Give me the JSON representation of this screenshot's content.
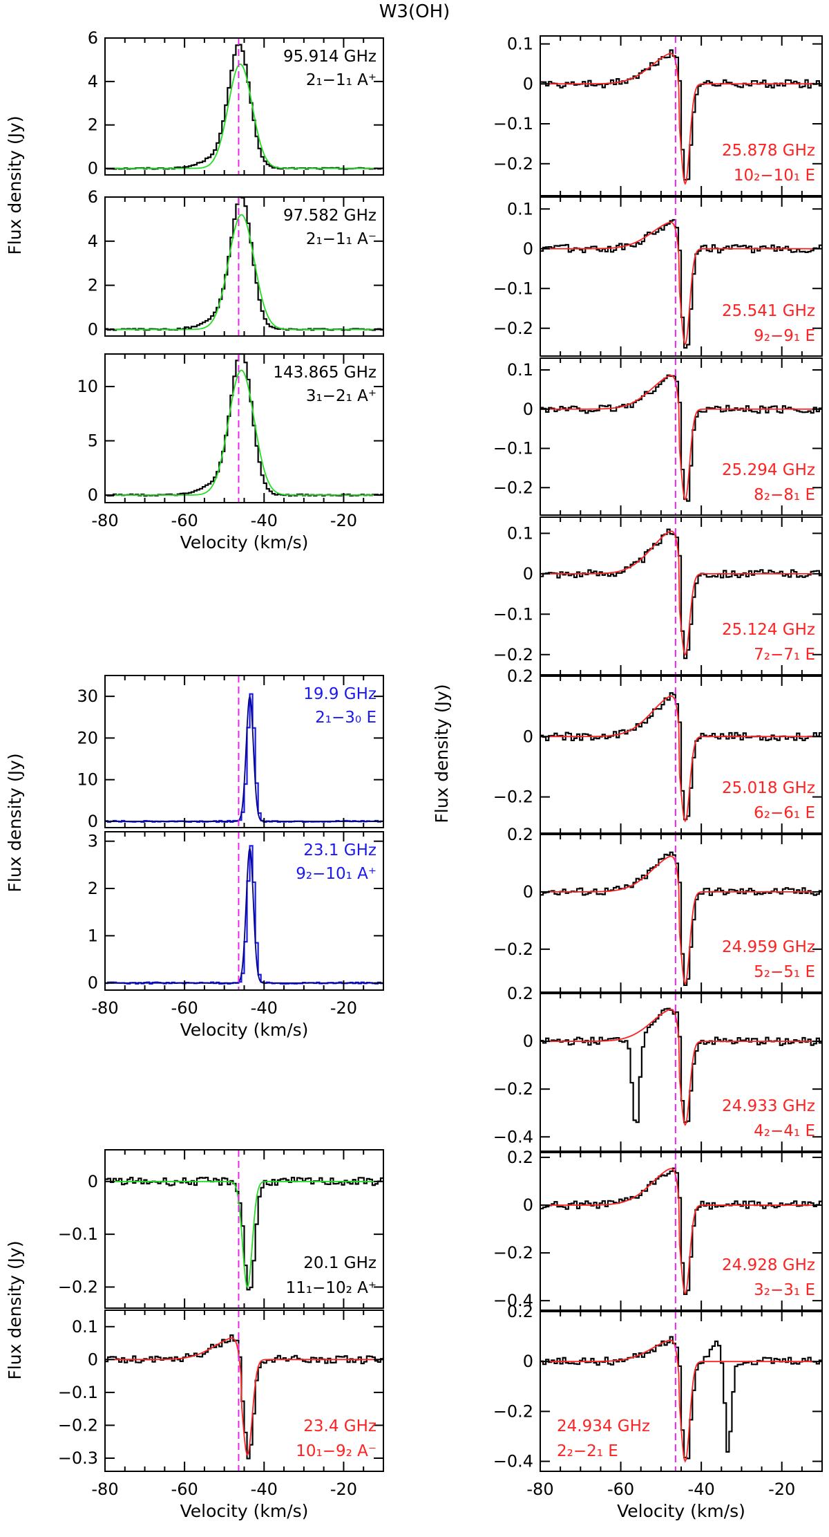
{
  "figure_title": "W3(OH)",
  "colors": {
    "observed": "#000000",
    "fit_green": "#22dd22",
    "fit_red": "#ff2222",
    "blue": "#1a1aee",
    "fit_blue_dark": "#000080",
    "vline": "#ee22ee"
  },
  "reference_velocity": -46.4,
  "chart_data": [
    {
      "id": "L1",
      "type": "line",
      "title": "",
      "xlim": [
        -80,
        -10
      ],
      "ylim": [
        -0.3,
        6
      ],
      "yticks": [
        0,
        2,
        4,
        6
      ],
      "ytick_labels": [
        "0",
        "2",
        "4",
        "6"
      ],
      "xticks": [
        -80,
        -60,
        -40,
        -20
      ],
      "xtick_labels": [
        "-80",
        "-60",
        "-40",
        "-20"
      ],
      "freq_label": "95.914 GHz",
      "trans_label": "2₁−1₁ A⁺",
      "label_color": "#000000",
      "label_pos": "top-right",
      "series": [
        {
          "role": "observed",
          "color": "#000000",
          "peak": 5.3,
          "center": -46.5,
          "wing": true
        },
        {
          "role": "fit",
          "color": "#22dd22",
          "peak": 4.8,
          "center": -46.0,
          "width": 3.0
        }
      ]
    },
    {
      "id": "L2",
      "type": "line",
      "title": "",
      "xlim": [
        -80,
        -10
      ],
      "ylim": [
        -0.3,
        6
      ],
      "yticks": [
        0,
        2,
        4,
        6
      ],
      "ytick_labels": [
        "0",
        "2",
        "4",
        "6"
      ],
      "xticks": [
        -80,
        -60,
        -40,
        -20
      ],
      "xtick_labels": [
        "-80",
        "-60",
        "-40",
        "-20"
      ],
      "freq_label": "97.582 GHz",
      "trans_label": "2₁−1₁ A⁻",
      "label_color": "#000000",
      "label_pos": "top-right",
      "series": [
        {
          "role": "observed",
          "color": "#000000",
          "peak": 5.6,
          "center": -46.0,
          "wing": true
        },
        {
          "role": "fit",
          "color": "#22dd22",
          "peak": 5.2,
          "center": -45.7,
          "width": 3.2
        }
      ]
    },
    {
      "id": "L3",
      "type": "line",
      "title": "",
      "xlim": [
        -80,
        -10
      ],
      "ylim": [
        -0.7,
        13
      ],
      "yticks": [
        0,
        5,
        10
      ],
      "ytick_labels": [
        "0",
        "5",
        "10"
      ],
      "xticks": [
        -80,
        -60,
        -40,
        -20
      ],
      "xtick_labels": [
        "-80",
        "-60",
        "-40",
        "-20"
      ],
      "freq_label": "143.865 GHz",
      "trans_label": "3₁−2₁ A⁺",
      "label_color": "#000000",
      "label_pos": "top-right",
      "xlabel": "Velocity (km/s)",
      "series": [
        {
          "role": "observed",
          "color": "#000000",
          "peak": 12.3,
          "center": -46.0,
          "wing": true
        },
        {
          "role": "fit",
          "color": "#22dd22",
          "peak": 11.5,
          "center": -45.7,
          "width": 3.2
        }
      ]
    },
    {
      "id": "L4",
      "type": "line",
      "title": "",
      "xlim": [
        -80,
        -10
      ],
      "ylim": [
        -1.5,
        35
      ],
      "yticks": [
        0,
        10,
        20,
        30
      ],
      "ytick_labels": [
        "0",
        "10",
        "20",
        "30"
      ],
      "xticks": [
        -80,
        -60,
        -40,
        -20
      ],
      "xtick_labels": [
        "-80",
        "-60",
        "-40",
        "-20"
      ],
      "freq_label": "19.9 GHz",
      "trans_label": "2₁−3₀ E",
      "label_color": "#1a1aee",
      "label_pos": "top-right",
      "series": [
        {
          "role": "observed",
          "color": "#1a1aee",
          "peak": 30.5,
          "center": -43.6,
          "width": 0.9
        },
        {
          "role": "fit",
          "color": "#000080",
          "peak": 30.0,
          "center": -43.6,
          "width": 0.9
        }
      ]
    },
    {
      "id": "L5",
      "type": "line",
      "title": "",
      "xlim": [
        -80,
        -10
      ],
      "ylim": [
        -0.15,
        3.2
      ],
      "yticks": [
        0,
        1,
        2,
        3
      ],
      "ytick_labels": [
        "0",
        "1",
        "2",
        "3"
      ],
      "xticks": [
        -80,
        -60,
        -40,
        -20
      ],
      "xtick_labels": [
        "-80",
        "-60",
        "-40",
        "-20"
      ],
      "freq_label": "23.1 GHz",
      "trans_label": "9₂−10₁ A⁺",
      "label_color": "#1a1aee",
      "label_pos": "top-right",
      "xlabel": "Velocity (km/s)",
      "series": [
        {
          "role": "observed",
          "color": "#1a1aee",
          "peak": 2.9,
          "center": -43.6,
          "width": 0.9
        },
        {
          "role": "fit",
          "color": "#000080",
          "peak": 2.85,
          "center": -43.6,
          "width": 0.9
        }
      ]
    },
    {
      "id": "L6",
      "type": "line",
      "title": "",
      "xlim": [
        -80,
        -10
      ],
      "ylim": [
        -0.24,
        0.06
      ],
      "yticks": [
        0,
        -0.1,
        -0.2
      ],
      "ytick_labels": [
        "0",
        "−0.1",
        "−0.2"
      ],
      "xticks": [
        -80,
        -60,
        -40,
        -20
      ],
      "xtick_labels": [
        "-80",
        "-60",
        "-40",
        "-20"
      ],
      "freq_label": "20.1 GHz",
      "trans_label": "11₁−10₂ A⁺",
      "label_color": "#000000",
      "label_pos": "bottom-right",
      "series": [
        {
          "role": "observed",
          "color": "#000000",
          "depth": -0.21,
          "center": -44.0,
          "width": 1.3,
          "wing_amp": 0
        },
        {
          "role": "fit",
          "color": "#22dd22",
          "depth": -0.2,
          "center": -44.2,
          "width": 1.2,
          "wing_amp": 0
        }
      ]
    },
    {
      "id": "L7",
      "type": "line",
      "title": "",
      "xlim": [
        -80,
        -10
      ],
      "ylim": [
        -0.34,
        0.15
      ],
      "yticks": [
        0.1,
        0,
        -0.1,
        -0.2,
        -0.3
      ],
      "ytick_labels": [
        "0.1",
        "0",
        "−0.1",
        "−0.2",
        "−0.3"
      ],
      "xticks": [
        -80,
        -60,
        -40,
        -20
      ],
      "xtick_labels": [
        "-80",
        "-60",
        "-40",
        "-20"
      ],
      "freq_label": "23.4 GHz",
      "trans_label": "10₁−9₂ A⁻",
      "label_color": "#ff2222",
      "label_pos": "bottom-right",
      "xlabel": "Velocity (km/s)",
      "series": [
        {
          "role": "observed",
          "color": "#000000",
          "depth": -0.29,
          "center": -44.2,
          "width": 1.2,
          "wing_amp": 0.07
        },
        {
          "role": "fit",
          "color": "#ff2222",
          "depth": -0.29,
          "center": -44.2,
          "width": 1.2,
          "wing_amp": 0.07
        }
      ]
    },
    {
      "id": "R1",
      "type": "line",
      "title": "",
      "xlim": [
        -80,
        -10
      ],
      "ylim": [
        -0.28,
        0.12
      ],
      "yticks": [
        0.1,
        0,
        -0.1,
        -0.2
      ],
      "ytick_labels": [
        "0.1",
        "0",
        "−0.1",
        "−0.2"
      ],
      "xticks": [
        -80,
        -60,
        -40,
        -20
      ],
      "xtick_labels": [
        "-80",
        "-60",
        "-40",
        "-20"
      ],
      "freq_label": "25.878 GHz",
      "trans_label": "10₂−10₁ E",
      "label_color": "#ff2222",
      "label_pos": "bottom-right",
      "series": [
        {
          "role": "observed",
          "color": "#000000",
          "depth": -0.25,
          "center": -44.0,
          "width": 1.1,
          "wing_amp": 0.08
        },
        {
          "role": "fit",
          "color": "#ff2222",
          "depth": -0.25,
          "center": -44.0,
          "width": 1.1,
          "wing_amp": 0.08
        }
      ]
    },
    {
      "id": "R2",
      "type": "line",
      "title": "",
      "xlim": [
        -80,
        -10
      ],
      "ylim": [
        -0.27,
        0.13
      ],
      "yticks": [
        0.1,
        0,
        -0.1,
        -0.2
      ],
      "ytick_labels": [
        "0.1",
        "0",
        "−0.1",
        "−0.2"
      ],
      "xticks": [
        -80,
        -60,
        -40,
        -20
      ],
      "xtick_labels": [
        "-80",
        "-60",
        "-40",
        "-20"
      ],
      "freq_label": "25.541 GHz",
      "trans_label": "9₂−9₁ E",
      "label_color": "#ff2222",
      "label_pos": "bottom-right",
      "series": [
        {
          "role": "observed",
          "color": "#000000",
          "depth": -0.25,
          "center": -44.0,
          "width": 1.1,
          "wing_amp": 0.07
        },
        {
          "role": "fit",
          "color": "#ff2222",
          "depth": -0.24,
          "center": -44.0,
          "width": 1.1,
          "wing_amp": 0.07
        }
      ]
    },
    {
      "id": "R3",
      "type": "line",
      "title": "",
      "xlim": [
        -80,
        -10
      ],
      "ylim": [
        -0.27,
        0.13
      ],
      "yticks": [
        0.1,
        0,
        -0.1,
        -0.2
      ],
      "ytick_labels": [
        "0.1",
        "0",
        "−0.1",
        "−0.2"
      ],
      "xticks": [
        -80,
        -60,
        -40,
        -20
      ],
      "xtick_labels": [
        "-80",
        "-60",
        "-40",
        "-20"
      ],
      "freq_label": "25.294 GHz",
      "trans_label": "8₂−8₁ E",
      "label_color": "#ff2222",
      "label_pos": "bottom-right",
      "series": [
        {
          "role": "observed",
          "color": "#000000",
          "depth": -0.24,
          "center": -44.0,
          "width": 1.1,
          "wing_amp": 0.09
        },
        {
          "role": "fit",
          "color": "#ff2222",
          "depth": -0.23,
          "center": -44.0,
          "width": 1.1,
          "wing_amp": 0.09
        }
      ]
    },
    {
      "id": "R4",
      "type": "line",
      "title": "",
      "xlim": [
        -80,
        -10
      ],
      "ylim": [
        -0.25,
        0.14
      ],
      "yticks": [
        0.1,
        0,
        -0.1,
        -0.2
      ],
      "ytick_labels": [
        "0.1",
        "0",
        "−0.1",
        "−0.2"
      ],
      "xticks": [
        -80,
        -60,
        -40,
        -20
      ],
      "xtick_labels": [
        "-80",
        "-60",
        "-40",
        "-20"
      ],
      "freq_label": "25.124 GHz",
      "trans_label": "7₂−7₁ E",
      "label_color": "#ff2222",
      "label_pos": "bottom-right",
      "series": [
        {
          "role": "observed",
          "color": "#000000",
          "depth": -0.21,
          "center": -44.0,
          "width": 1.1,
          "wing_amp": 0.11
        },
        {
          "role": "fit",
          "color": "#ff2222",
          "depth": -0.2,
          "center": -44.0,
          "width": 1.1,
          "wing_amp": 0.11
        }
      ]
    },
    {
      "id": "R5",
      "type": "line",
      "title": "",
      "xlim": [
        -80,
        -10
      ],
      "ylim": [
        -0.32,
        0.2
      ],
      "yticks": [
        0.2,
        0,
        -0.2
      ],
      "ytick_labels": [
        "0.2",
        "0",
        "−0.2"
      ],
      "xticks": [
        -80,
        -60,
        -40,
        -20
      ],
      "xtick_labels": [
        "-80",
        "-60",
        "-40",
        "-20"
      ],
      "freq_label": "25.018 GHz",
      "trans_label": "6₂−6₁ E",
      "label_color": "#ff2222",
      "label_pos": "bottom-right",
      "series": [
        {
          "role": "observed",
          "color": "#000000",
          "depth": -0.29,
          "center": -44.0,
          "width": 1.1,
          "wing_amp": 0.14
        },
        {
          "role": "fit",
          "color": "#ff2222",
          "depth": -0.28,
          "center": -44.0,
          "width": 1.1,
          "wing_amp": 0.14
        }
      ]
    },
    {
      "id": "R6",
      "type": "line",
      "title": "",
      "xlim": [
        -80,
        -10
      ],
      "ylim": [
        -0.35,
        0.2
      ],
      "yticks": [
        0.2,
        0,
        -0.2
      ],
      "ytick_labels": [
        "0.2",
        "0",
        "−0.2"
      ],
      "xticks": [
        -80,
        -60,
        -40,
        -20
      ],
      "xtick_labels": [
        "-80",
        "-60",
        "-40",
        "-20"
      ],
      "freq_label": "24.959 GHz",
      "trans_label": "5₂−5₁ E",
      "label_color": "#ff2222",
      "label_pos": "bottom-right",
      "series": [
        {
          "role": "observed",
          "color": "#000000",
          "depth": -0.33,
          "center": -44.0,
          "width": 1.1,
          "wing_amp": 0.14
        },
        {
          "role": "fit",
          "color": "#ff2222",
          "depth": -0.32,
          "center": -44.0,
          "width": 1.1,
          "wing_amp": 0.13
        }
      ]
    },
    {
      "id": "R7",
      "type": "line",
      "title": "",
      "xlim": [
        -80,
        -10
      ],
      "ylim": [
        -0.46,
        0.2
      ],
      "yticks": [
        0.2,
        0,
        -0.2,
        -0.4
      ],
      "ytick_labels": [
        "0.2",
        "0",
        "−0.2",
        "−0.4"
      ],
      "xticks": [
        -80,
        -60,
        -40,
        -20
      ],
      "xtick_labels": [
        "-80",
        "-60",
        "-40",
        "-20"
      ],
      "freq_label": "24.933 GHz",
      "trans_label": "4₂−4₁ E",
      "label_color": "#ff2222",
      "label_pos": "bottom-right",
      "series": [
        {
          "role": "observed",
          "color": "#000000",
          "depth": -0.36,
          "center": -44.0,
          "width": 1.1,
          "wing_amp": 0.14,
          "extra_center": -56.5,
          "extra_depth": -0.38
        },
        {
          "role": "fit",
          "color": "#ff2222",
          "depth": -0.35,
          "center": -44.0,
          "width": 1.1,
          "wing_amp": 0.14
        }
      ]
    },
    {
      "id": "R8",
      "type": "line",
      "title": "",
      "xlim": [
        -80,
        -10
      ],
      "ylim": [
        -0.44,
        0.22
      ],
      "yticks": [
        0.2,
        0,
        -0.2,
        -0.4
      ],
      "ytick_labels": [
        "0.2",
        "0",
        "−0.2",
        "−0.4"
      ],
      "xticks": [
        -80,
        -60,
        -40,
        -20
      ],
      "xtick_labels": [
        "-80",
        "-60",
        "-40",
        "-20"
      ],
      "freq_label": "24.928 GHz",
      "trans_label": "3₂−3₁ E",
      "label_color": "#ff2222",
      "label_pos": "bottom-right",
      "series": [
        {
          "role": "observed",
          "color": "#000000",
          "depth": -0.38,
          "center": -44.0,
          "width": 1.1,
          "wing_amp": 0.16
        },
        {
          "role": "fit",
          "color": "#ff2222",
          "depth": -0.37,
          "center": -44.0,
          "width": 1.1,
          "wing_amp": 0.16
        }
      ]
    },
    {
      "id": "R9",
      "type": "line",
      "title": "",
      "xlim": [
        -80,
        -10
      ],
      "ylim": [
        -0.44,
        0.2
      ],
      "yticks": [
        0.2,
        0,
        -0.2,
        -0.4
      ],
      "ytick_labels": [
        "0.2",
        "0",
        "−0.2",
        "−0.4"
      ],
      "xticks": [
        -80,
        -60,
        -40,
        -20
      ],
      "xtick_labels": [
        "-80",
        "-60",
        "-40",
        "-20"
      ],
      "freq_label": "24.934 GHz",
      "trans_label": "2₂−2₁ E",
      "label_color": "#ff2222",
      "label_pos": "bottom-left",
      "xlabel": "Velocity (km/s)",
      "series": [
        {
          "role": "observed",
          "color": "#000000",
          "depth": -0.41,
          "center": -44.0,
          "width": 1.1,
          "wing_amp": 0.09,
          "extra_center": -33.8,
          "extra_depth": -0.37,
          "extra_emission": 0.12
        },
        {
          "role": "fit",
          "color": "#ff2222",
          "depth": -0.4,
          "center": -44.0,
          "width": 1.1,
          "wing_amp": 0.09
        }
      ]
    }
  ],
  "y_axis_labels": [
    {
      "text": "Flux density (Jy)",
      "group": "left-top"
    },
    {
      "text": "Flux density (Jy)",
      "group": "left-mid"
    },
    {
      "text": "Flux density (Jy)",
      "group": "left-bottom"
    },
    {
      "text": "Flux density (Jy)",
      "group": "right"
    }
  ]
}
